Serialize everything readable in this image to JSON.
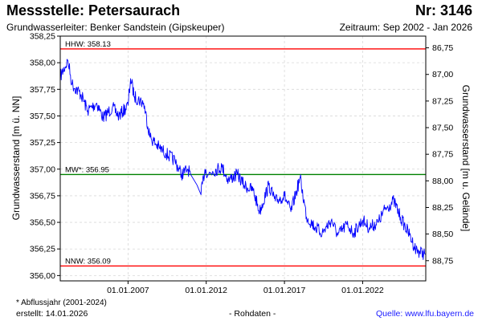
{
  "header": {
    "title": "Messstelle: Petersaurach",
    "number": "Nr: 3146",
    "aquifer": "Grundwasserleiter:   Benker Sandstein (Gipskeuper)",
    "period": "Zeitraum: Sep 2002 - Jan 2026"
  },
  "footer": {
    "note": "* Abflussjahr (2001-2024)",
    "created": "erstellt:  14.01.2026",
    "rawdata": "- Rohdaten -",
    "source": "Quelle:  www.lfu.bayern.de"
  },
  "chart_data": {
    "type": "line",
    "ylabel": "Grundwasserstand [m ü. NN]",
    "ylabel_right": "Grundwasserstand [m u. Gelände]",
    "ylim": [
      355.95,
      358.25
    ],
    "xlim": [
      "2002-09-01",
      "2026-01-14"
    ],
    "yticks": [
      356.0,
      356.25,
      356.5,
      356.75,
      357.0,
      357.25,
      357.5,
      357.75,
      358.0,
      358.25
    ],
    "ytick_labels": [
      "356,00",
      "356,25",
      "356,50",
      "356,75",
      "357,00",
      "357,25",
      "357,50",
      "357,75",
      "358,00",
      "358,25"
    ],
    "yticks_right": [
      86.75,
      87.0,
      87.25,
      87.5,
      87.75,
      88.0,
      88.25,
      88.5,
      88.75
    ],
    "ytick_labels_right": [
      "86,75",
      "87,00",
      "87,25",
      "87,50",
      "87,75",
      "88,00",
      "88,25",
      "88,50",
      "88,75"
    ],
    "right_axis_offset": 444.89,
    "xticks": [
      "2007-01-01",
      "2012-01-01",
      "2017-01-01",
      "2022-01-01"
    ],
    "xtick_labels": [
      "01.01.2007",
      "01.01.2012",
      "01.01.2017",
      "01.01.2022"
    ],
    "grid": true,
    "line_color": "#0000ff",
    "reference_lines": [
      {
        "label": "HHW: 358.13",
        "value": 358.13,
        "color": "#ff0000"
      },
      {
        "label": "MW*: 356.95",
        "value": 356.95,
        "color": "#008000"
      },
      {
        "label": "NNW: 356.09",
        "value": 356.09,
        "color": "#ff0000"
      }
    ],
    "series": [
      {
        "x": [
          "2002-09-01",
          "2003-03-01",
          "2003-06-01",
          "2004-01-01",
          "2004-06-01",
          "2005-01-01",
          "2005-06-01",
          "2006-01-01",
          "2006-06-01",
          "2007-01-01",
          "2007-03-01",
          "2007-06-01",
          "2008-01-01",
          "2008-06-01",
          "2009-01-01",
          "2009-06-01",
          "2010-01-01",
          "2010-06-01",
          "2010-11-01",
          "2011-01-01",
          "2011-06-01",
          "2011-09-01",
          "2011-12-01",
          "2012-03-01",
          "2012-06-01",
          "2013-01-01",
          "2013-06-01",
          "2014-01-01",
          "2014-06-01",
          "2015-01-01",
          "2015-06-01",
          "2016-01-01",
          "2016-06-01",
          "2017-01-01",
          "2017-06-01",
          "2018-01-01",
          "2018-06-01",
          "2019-01-01",
          "2019-06-01",
          "2020-01-01",
          "2020-06-01",
          "2021-01-01",
          "2021-06-01",
          "2022-01-01",
          "2022-06-01",
          "2023-01-01",
          "2023-06-01",
          "2024-01-01",
          "2024-06-01",
          "2025-01-01",
          "2025-06-01",
          "2026-01-10"
        ],
        "y": [
          357.87,
          358.02,
          357.8,
          357.7,
          357.55,
          357.62,
          357.48,
          357.58,
          357.5,
          357.6,
          357.85,
          357.68,
          357.62,
          357.3,
          357.2,
          357.15,
          357.08,
          356.95,
          357.0,
          356.95,
          356.85,
          356.76,
          357.0,
          356.95,
          356.98,
          357.02,
          356.9,
          356.95,
          356.85,
          356.8,
          356.6,
          356.85,
          356.7,
          356.75,
          356.6,
          356.92,
          356.55,
          356.45,
          356.4,
          356.52,
          356.38,
          356.48,
          356.4,
          356.52,
          356.45,
          356.5,
          356.62,
          356.7,
          356.55,
          356.38,
          356.24,
          356.2
        ]
      }
    ]
  }
}
